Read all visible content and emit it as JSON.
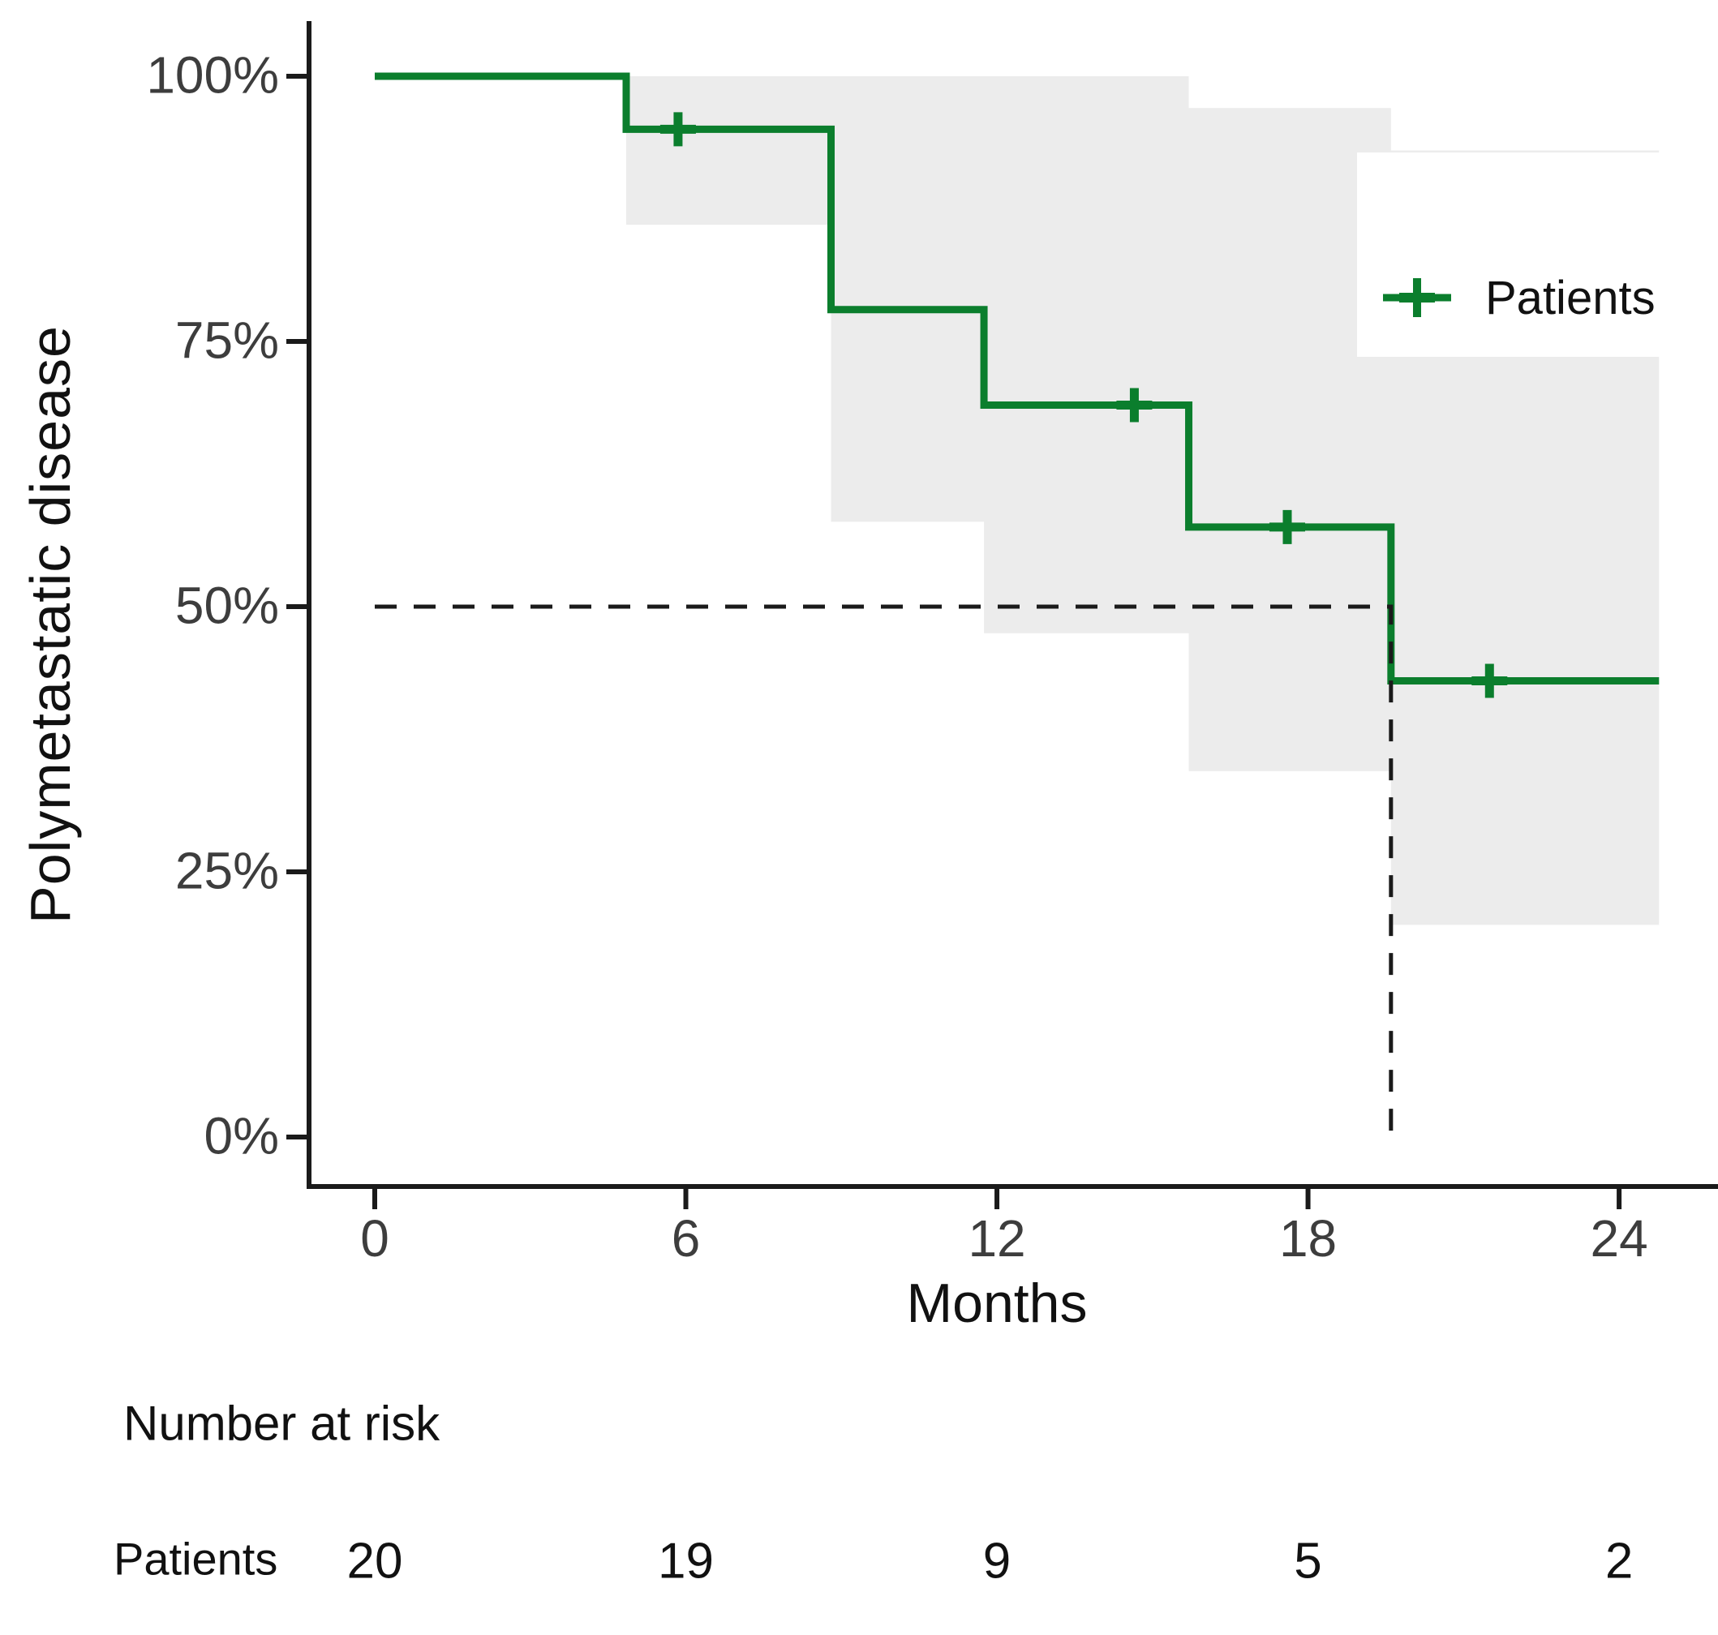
{
  "chart_data": {
    "type": "line",
    "subtype": "kaplan-meier-step",
    "title": "",
    "xlabel": "Months",
    "ylabel": "Polymetastatic disease",
    "xlim": [
      0,
      25.9
    ],
    "ylim": [
      0,
      100
    ],
    "grid": false,
    "x_ticks": [
      {
        "v": 0,
        "label": "0"
      },
      {
        "v": 6,
        "label": "6"
      },
      {
        "v": 12,
        "label": "12"
      },
      {
        "v": 18,
        "label": "18"
      },
      {
        "v": 24,
        "label": "24"
      }
    ],
    "y_ticks": [
      {
        "v": 0,
        "label": "0%"
      },
      {
        "v": 25,
        "label": "25%"
      },
      {
        "v": 50,
        "label": "50%"
      },
      {
        "v": 75,
        "label": "75%"
      },
      {
        "v": 100,
        "label": "100%"
      }
    ],
    "series": [
      {
        "name": "Patients",
        "color": "#0b7e2d",
        "steps": [
          {
            "t": 0,
            "s": 100
          },
          {
            "t": 4.85,
            "s": 95
          },
          {
            "t": 8.8,
            "s": 78
          },
          {
            "t": 11.75,
            "s": 69
          },
          {
            "t": 15.7,
            "s": 57.5
          },
          {
            "t": 19.6,
            "s": 43
          }
        ],
        "end_t": 24.77,
        "censors": [
          {
            "t": 5.85,
            "s": 95
          },
          {
            "t": 14.65,
            "s": 69
          },
          {
            "t": 17.6,
            "s": 57.5
          },
          {
            "t": 21.5,
            "s": 43
          }
        ],
        "ci": {
          "fill": "#ececec",
          "segments": [
            {
              "t1": 4.85,
              "t2": 8.8,
              "lo": 86,
              "hi": 100
            },
            {
              "t1": 8.8,
              "t2": 11.75,
              "lo": 58,
              "hi": 100
            },
            {
              "t1": 11.75,
              "t2": 15.7,
              "lo": 47.5,
              "hi": 100
            },
            {
              "t1": 15.7,
              "t2": 19.6,
              "lo": 34.5,
              "hi": 97
            },
            {
              "t1": 19.6,
              "t2": 24.77,
              "lo": 20,
              "hi": 93
            }
          ]
        }
      }
    ],
    "median_line": {
      "t": 19.6,
      "s": 50
    },
    "legend": {
      "label": "Patients",
      "position": "right"
    },
    "axis_color": "#1a1a1a"
  },
  "risk_table": {
    "title": "Number at risk",
    "times": [
      0,
      6,
      12,
      18,
      24
    ],
    "rows": [
      {
        "label": "Patients",
        "values": [
          "20",
          "19",
          "9",
          "5",
          "2"
        ]
      }
    ]
  }
}
